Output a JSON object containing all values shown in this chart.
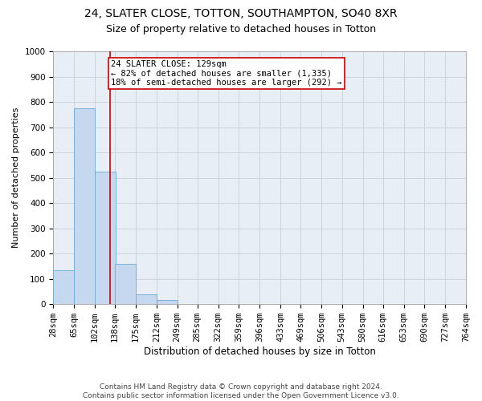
{
  "title1": "24, SLATER CLOSE, TOTTON, SOUTHAMPTON, SO40 8XR",
  "title2": "Size of property relative to detached houses in Totton",
  "xlabel": "Distribution of detached houses by size in Totton",
  "ylabel": "Number of detached properties",
  "bar_values": [
    135,
    775,
    525,
    160,
    38,
    15,
    0,
    0,
    0,
    0,
    0,
    0,
    0,
    0,
    0,
    0,
    0,
    0,
    0,
    0
  ],
  "bin_edges": [
    28,
    65,
    102,
    138,
    175,
    212,
    249,
    285,
    322,
    359,
    396,
    433,
    469,
    506,
    543,
    580,
    616,
    653,
    690,
    727,
    764
  ],
  "bar_color": "#c5d8f0",
  "bar_edge_color": "#6aaad4",
  "grid_color": "#c8d0dc",
  "vline_x": 129,
  "vline_color": "#cc0000",
  "annotation_text": "24 SLATER CLOSE: 129sqm\n← 82% of detached houses are smaller (1,335)\n18% of semi-detached houses are larger (292) →",
  "annotation_box_color": "white",
  "annotation_box_edge": "#cc0000",
  "ylim": [
    0,
    1000
  ],
  "yticks": [
    0,
    100,
    200,
    300,
    400,
    500,
    600,
    700,
    800,
    900,
    1000
  ],
  "footer": "Contains HM Land Registry data © Crown copyright and database right 2024.\nContains public sector information licensed under the Open Government Licence v3.0.",
  "fig_bg_color": "#ffffff",
  "plot_bg_color": "#e8eef5",
  "title1_fontsize": 10,
  "title2_fontsize": 9,
  "xlabel_fontsize": 8.5,
  "ylabel_fontsize": 8,
  "tick_fontsize": 7.5,
  "annotation_fontsize": 7.5,
  "footer_fontsize": 6.5
}
